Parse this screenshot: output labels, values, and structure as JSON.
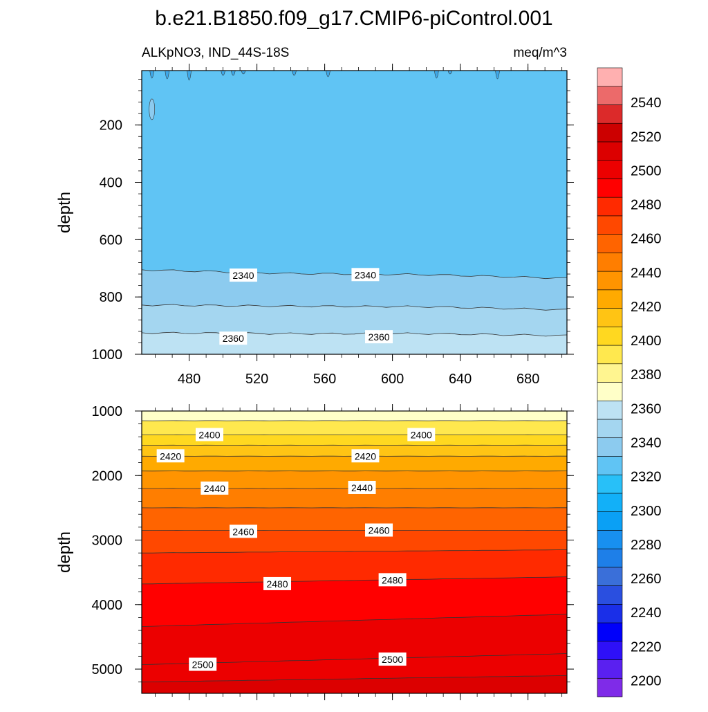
{
  "title": "b.e21.B1850.f09_g17.CMIP6-piControl.001",
  "subtitle_left": "ALKpNO3, IND_44S-18S",
  "subtitle_right": "meq/m^3",
  "colorbar": {
    "tick_labels": [
      "2200",
      "2220",
      "2240",
      "2260",
      "2280",
      "2300",
      "2320",
      "2340",
      "2360",
      "2380",
      "2400",
      "2420",
      "2440",
      "2460",
      "2480",
      "2500",
      "2520",
      "2540"
    ],
    "colors": [
      "#7f2be8",
      "#5a20f0",
      "#2e10f8",
      "#0000fa",
      "#1a2fe8",
      "#2a4fe0",
      "#3a6fd9",
      "#1e7fe8",
      "#1890f0",
      "#0aa0f5",
      "#12b0f8",
      "#28c0f8",
      "#60c4f4",
      "#8ccbef",
      "#a4d6f0",
      "#bde2f3",
      "#ffffc8",
      "#fff590",
      "#ffe84e",
      "#ffd820",
      "#ffc414",
      "#ffaa00",
      "#ff9400",
      "#ff7e00",
      "#ff6400",
      "#ff4800",
      "#ff2a00",
      "#ff0000",
      "#ec0000",
      "#dc0000",
      "#cc0000",
      "#dc2a2a",
      "#ec6a6a",
      "#ffb0b0"
    ]
  },
  "chart_data": [
    {
      "type": "contour",
      "panel": "upper",
      "ylabel": "depth",
      "xlabel": "",
      "x_tick_labels": [
        "480",
        "520",
        "560",
        "600",
        "640",
        "680"
      ],
      "x_ticks": [
        480,
        520,
        560,
        600,
        640,
        680
      ],
      "xlim": [
        452,
        703
      ],
      "y_tick_labels": [
        "200",
        "400",
        "600",
        "800",
        "1000"
      ],
      "y_ticks": [
        200,
        400,
        600,
        800,
        1000
      ],
      "ylim": [
        10,
        1000
      ],
      "y_inverted": true,
      "contours": [
        {
          "level": 2340,
          "y": [
            705,
            718,
            722,
            735
          ],
          "label": "2340"
        },
        {
          "level": 2350,
          "y": [
            828,
            832,
            834,
            845
          ],
          "label": ""
        },
        {
          "level": 2360,
          "y": [
            925,
            928,
            928,
            935
          ],
          "label": "2360"
        }
      ],
      "contour_labels": [
        {
          "text": "2340",
          "x": 512,
          "y": 725
        },
        {
          "text": "2340",
          "x": 584,
          "y": 723
        },
        {
          "text": "2360",
          "x": 506,
          "y": 945
        },
        {
          "text": "2360",
          "x": 592,
          "y": 940
        }
      ],
      "bands": [
        {
          "from": 10,
          "to_level": 2340,
          "color": "#60c4f4"
        },
        {
          "level_range": [
            2340,
            2350
          ],
          "color": "#8ccbef"
        },
        {
          "level_range": [
            2350,
            2360
          ],
          "color": "#a4d6f0"
        },
        {
          "level_range": [
            2360,
            2380
          ],
          "color": "#bde2f3"
        }
      ]
    },
    {
      "type": "contour",
      "panel": "lower",
      "ylabel": "depth",
      "xlabel": "",
      "x_ticks": [
        480,
        520,
        560,
        600,
        640,
        680
      ],
      "xlim": [
        452,
        703
      ],
      "y_tick_labels": [
        "1000",
        "2000",
        "3000",
        "4000",
        "5000"
      ],
      "y_ticks": [
        1000,
        2000,
        3000,
        4000,
        5000
      ],
      "ylim": [
        1000,
        5375
      ],
      "y_inverted": true,
      "contours": [
        {
          "level": 2390,
          "y": [
            1150,
            1150
          ],
          "label": ""
        },
        {
          "level": 2400,
          "y": [
            1370,
            1370
          ],
          "label": "2400"
        },
        {
          "level": 2410,
          "y": [
            1530,
            1530
          ],
          "label": ""
        },
        {
          "level": 2420,
          "y": [
            1700,
            1700
          ],
          "label": "2420"
        },
        {
          "level": 2430,
          "y": [
            1930,
            1930
          ],
          "label": ""
        },
        {
          "level": 2440,
          "y": [
            2200,
            2200
          ],
          "label": "2440"
        },
        {
          "level": 2450,
          "y": [
            2500,
            2500
          ],
          "label": ""
        },
        {
          "level": 2460,
          "y": [
            2850,
            2850
          ],
          "label": "2460"
        },
        {
          "level": 2470,
          "y": [
            3200,
            3150
          ],
          "label": ""
        },
        {
          "level": 2480,
          "y": [
            3680,
            3570
          ],
          "label": "2480"
        },
        {
          "level": 2490,
          "y": [
            4340,
            4150
          ],
          "label": ""
        },
        {
          "level": 2500,
          "y": [
            4930,
            4760
          ],
          "label": "2500"
        },
        {
          "level": 2510,
          "y": [
            5200,
            5100
          ],
          "label": ""
        }
      ],
      "contour_labels": [
        {
          "text": "2400",
          "x": 492,
          "y": 1370
        },
        {
          "text": "2400",
          "x": 617,
          "y": 1370
        },
        {
          "text": "2420",
          "x": 469,
          "y": 1700
        },
        {
          "text": "2420",
          "x": 584,
          "y": 1700
        },
        {
          "text": "2440",
          "x": 495,
          "y": 2200
        },
        {
          "text": "2440",
          "x": 582,
          "y": 2190
        },
        {
          "text": "2460",
          "x": 512,
          "y": 2870
        },
        {
          "text": "2460",
          "x": 592,
          "y": 2850
        },
        {
          "text": "2480",
          "x": 532,
          "y": 3680
        },
        {
          "text": "2480",
          "x": 600,
          "y": 3620
        },
        {
          "text": "2500",
          "x": 488,
          "y": 4930
        },
        {
          "text": "2500",
          "x": 600,
          "y": 4850
        }
      ]
    }
  ]
}
